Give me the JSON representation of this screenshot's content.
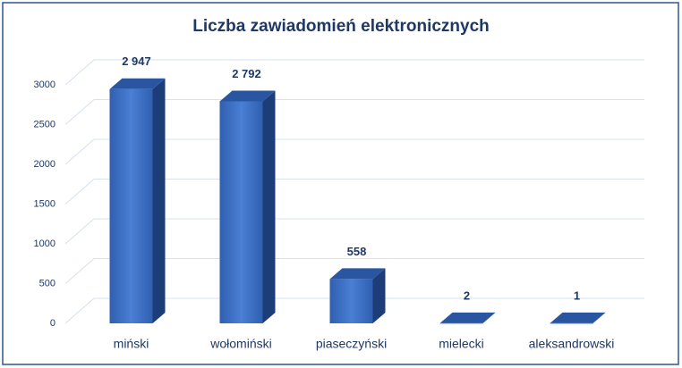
{
  "chart_data": {
    "type": "bar3d",
    "title": "Liczba zawiadomień elektronicznych",
    "categories": [
      "miński",
      "wołomiński",
      "piaseczyński",
      "mielecki",
      "aleksandrowski"
    ],
    "values": [
      2947,
      2792,
      558,
      2,
      1
    ],
    "value_labels": [
      "2 947",
      "2 792",
      "558",
      "2",
      "1"
    ],
    "color": "#3a6fc4",
    "ylim": [
      0,
      3000
    ],
    "yticks": [
      0,
      500,
      1000,
      1500,
      2000,
      2500,
      3000
    ],
    "grid": true
  }
}
